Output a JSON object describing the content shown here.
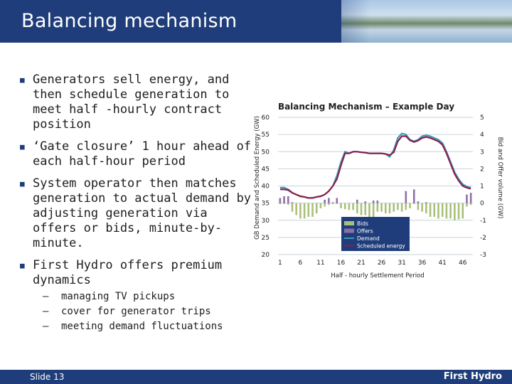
{
  "slide": {
    "title": "Balancing mechanism",
    "slide_number": "Slide 13",
    "brand": "First Hydro"
  },
  "bullets": [
    "Generators sell energy, and then schedule generation to meet half -hourly contract position",
    "‘Gate closure’ 1 hour ahead of each half-hour period",
    "System operator then matches generation to actual demand by adjusting generation via offers or bids, minute-by-minute.",
    "First Hydro offers premium dynamics"
  ],
  "sub_bullets": [
    "managing TV pickups",
    "cover for generator trips",
    "meeting demand fluctuations"
  ],
  "colors": {
    "header": "#1f3d7a",
    "bids": "#a8bf7a",
    "offers": "#8c6fa8",
    "demand": "#3a9ab8",
    "scheduled": "#8b1f4a"
  },
  "chart_data": {
    "type": "bar+line",
    "title": "Balancing Mechanism – Example Day",
    "ylabel": "GB Demand and Scheduled Energy (GW)",
    "y2label": "Bid and Offer volume (GW)",
    "xlabel": "Half - hourly Settlement Period",
    "ylim": [
      20,
      60
    ],
    "y2lim": [
      -3,
      5
    ],
    "xlim": [
      1,
      48
    ],
    "x_ticks": [
      1,
      6,
      11,
      16,
      21,
      26,
      31,
      36,
      41,
      46
    ],
    "y_ticks": [
      20,
      25,
      30,
      35,
      40,
      45,
      50,
      55,
      60
    ],
    "y2_ticks": [
      -3,
      -2,
      -1,
      0,
      1,
      2,
      3,
      4,
      5
    ],
    "legend": [
      "Bids",
      "Offers",
      "Demand",
      "Scheduled energy"
    ],
    "legend_position": "bottom-center",
    "grid": "horizontal",
    "series": [
      {
        "name": "Bids",
        "type": "bar",
        "axis": "y2",
        "values": [
          -0.05,
          -0.05,
          -0.1,
          -0.5,
          -0.7,
          -0.9,
          -0.9,
          -0.8,
          -0.8,
          -0.6,
          -0.3,
          -0.2,
          -0.1,
          -0.05,
          -0.05,
          -0.3,
          -0.35,
          -0.4,
          -0.4,
          -0.6,
          -0.7,
          -0.7,
          -0.9,
          -0.8,
          -0.5,
          -0.5,
          -0.6,
          -0.6,
          -0.5,
          -0.4,
          -0.5,
          -0.4,
          -0.3,
          -0.05,
          -0.4,
          -0.5,
          -0.6,
          -0.8,
          -0.8,
          -0.9,
          -0.8,
          -0.9,
          -0.9,
          -1.0,
          -0.95,
          -0.9,
          -0.2,
          -0.1
        ]
      },
      {
        "name": "Offers",
        "type": "bar",
        "axis": "y2",
        "values": [
          0.3,
          0.4,
          0.4,
          0.05,
          0,
          0,
          0,
          0,
          0,
          0,
          0,
          0.2,
          0.3,
          0.05,
          0.3,
          0,
          0,
          0,
          0,
          0.2,
          0,
          0.1,
          0,
          0.15,
          0.15,
          0,
          0,
          0,
          0,
          0,
          0,
          0.7,
          0,
          0.8,
          0.1,
          0,
          0.05,
          0,
          0,
          0,
          0,
          0,
          0,
          0,
          0,
          0,
          0.5,
          0.6
        ]
      },
      {
        "name": "Demand",
        "type": "line",
        "axis": "y",
        "values": [
          39.5,
          39.5,
          39.0,
          38.0,
          37.5,
          37.0,
          36.8,
          36.5,
          36.5,
          36.8,
          37.0,
          37.5,
          38.5,
          40.0,
          43.0,
          47.0,
          50.0,
          49.5,
          50.0,
          50.0,
          49.8,
          49.7,
          49.5,
          49.5,
          49.5,
          49.5,
          49.3,
          48.5,
          50.5,
          54.0,
          55.3,
          55.0,
          53.5,
          53.0,
          53.5,
          54.5,
          54.8,
          54.5,
          54.0,
          53.5,
          52.5,
          50.0,
          47.0,
          44.0,
          42.0,
          40.5,
          39.8,
          39.5
        ]
      },
      {
        "name": "Scheduled energy",
        "type": "line",
        "axis": "y",
        "values": [
          39.0,
          39.0,
          38.8,
          38.0,
          37.5,
          37.0,
          36.8,
          36.5,
          36.5,
          36.8,
          37.0,
          37.5,
          38.5,
          40.0,
          42.0,
          46.0,
          49.5,
          49.5,
          50.0,
          50.0,
          49.8,
          49.7,
          49.5,
          49.5,
          49.5,
          49.5,
          49.3,
          49.0,
          49.8,
          53.0,
          54.5,
          54.5,
          53.3,
          52.8,
          53.2,
          54.0,
          54.3,
          54.0,
          53.5,
          53.0,
          52.0,
          49.5,
          46.5,
          43.5,
          41.5,
          40.0,
          39.5,
          39.2
        ]
      }
    ]
  }
}
